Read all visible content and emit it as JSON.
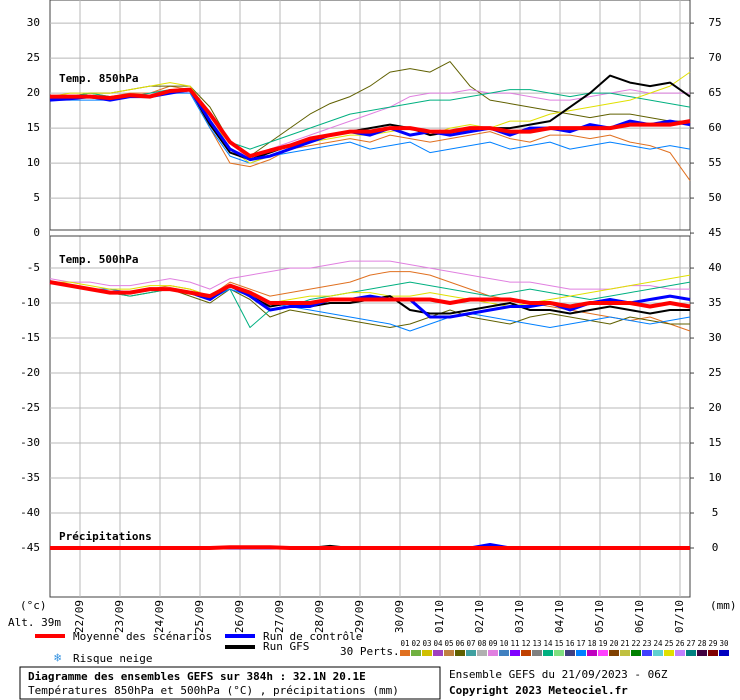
{
  "chart_data": {
    "type": "line",
    "title": "Diagramme des ensembles GEFS sur 384h : 32.1N 20.1E",
    "subtitle": "Températures 850hPa et 500hPa (°C) , précipitations (mm)",
    "run": "Ensemble GEFS du 21/09/2023 - 06Z",
    "copyright": "Copyright 2023 Meteociel.fr",
    "altitude": "Alt. 39m",
    "ylabel": "(°c)",
    "y2label": "(mm)",
    "snow_label": "Risque neige",
    "perts_label": "30 Perts.",
    "labels": {
      "t850": "Temp. 850hPa",
      "t500": "Temp. 500hPa",
      "precip": "Précipitations"
    },
    "precip_axis": "y2",
    "grid": true,
    "x": [
      0,
      12,
      24,
      36,
      48,
      60,
      72,
      84,
      96,
      108,
      120,
      132,
      144,
      156,
      168,
      180,
      192,
      204,
      216,
      228,
      240,
      252,
      264,
      276,
      288,
      300,
      312,
      324,
      336,
      348,
      360,
      372,
      384
    ],
    "xlim": [
      0,
      384
    ],
    "xticks": [
      {
        "value": 18,
        "label": "22/09"
      },
      {
        "value": 42,
        "label": "23/09"
      },
      {
        "value": 66,
        "label": "24/09"
      },
      {
        "value": 90,
        "label": "25/09"
      },
      {
        "value": 114,
        "label": "26/09"
      },
      {
        "value": 138,
        "label": "27/09"
      },
      {
        "value": 162,
        "label": "28/09"
      },
      {
        "value": 186,
        "label": "29/09"
      },
      {
        "value": 210,
        "label": "30/09"
      },
      {
        "value": 234,
        "label": "01/10"
      },
      {
        "value": 258,
        "label": "02/10"
      },
      {
        "value": 282,
        "label": "03/10"
      },
      {
        "value": 306,
        "label": "04/10"
      },
      {
        "value": 330,
        "label": "05/10"
      },
      {
        "value": 354,
        "label": "06/10"
      },
      {
        "value": 378,
        "label": "07/10"
      }
    ],
    "ylim": [
      -52,
      33.3
    ],
    "yticks": [
      30,
      25,
      20,
      15,
      10,
      5,
      0,
      -5,
      -10,
      -15,
      -20,
      -25,
      -30,
      -35,
      -40,
      -45
    ],
    "y2lim": [
      -7,
      78.3
    ],
    "y2ticks": [
      75,
      70,
      65,
      60,
      55,
      50,
      45,
      40,
      35,
      30,
      25,
      20,
      15,
      10,
      5,
      0
    ],
    "series": [
      {
        "name": "Run GFS",
        "color": "#000000",
        "t850": [
          19.5,
          19.5,
          19.5,
          19,
          19.5,
          19.5,
          20,
          20.5,
          15.5,
          11.5,
          10.5,
          11.5,
          12.5,
          13,
          14,
          14.5,
          15,
          15.5,
          15,
          14,
          14.5,
          14.5,
          15,
          15,
          15.5,
          16,
          18,
          20,
          22.5,
          21.5,
          21,
          21.5,
          19.5
        ],
        "t500": [
          -7,
          -7.5,
          -8,
          -8.5,
          -8.5,
          -8,
          -8,
          -8.5,
          -9.5,
          -7.5,
          -9,
          -10.5,
          -10,
          -10.5,
          -10,
          -10,
          -9.5,
          -9,
          -11,
          -11.5,
          -11.5,
          -11,
          -10.5,
          -10,
          -11,
          -11,
          -11.5,
          -11,
          -10.5,
          -11,
          -11.5,
          -11,
          -11
        ],
        "precip": [
          0,
          0,
          0,
          0,
          0,
          0,
          0,
          0,
          0,
          0,
          0,
          0,
          0,
          0,
          0.3,
          0,
          0,
          0,
          0,
          0,
          0,
          0,
          0,
          0,
          0,
          0,
          0,
          0,
          0,
          0,
          0,
          0,
          0
        ]
      },
      {
        "name": "Run de contrôle",
        "color": "#0000ff",
        "t850": [
          19,
          19.2,
          19.5,
          19,
          19.5,
          19.5,
          20,
          20.5,
          16,
          12,
          10.5,
          11,
          12,
          13,
          14,
          14.5,
          14,
          15,
          14,
          14.5,
          14,
          14.5,
          15,
          14,
          15,
          15,
          14.5,
          15.5,
          15,
          16,
          15.5,
          16,
          15.5
        ],
        "t500": [
          -7,
          -7.5,
          -8,
          -8.5,
          -8.5,
          -8,
          -8,
          -8.5,
          -9.5,
          -7.5,
          -9,
          -11,
          -10.5,
          -10.5,
          -9.5,
          -9.5,
          -9,
          -9.5,
          -9.5,
          -12,
          -12,
          -11.5,
          -11,
          -10.5,
          -10.5,
          -10,
          -11,
          -10,
          -9.5,
          -10,
          -9.5,
          -9,
          -9.5
        ],
        "precip": [
          0,
          0,
          0,
          0,
          0,
          0,
          0,
          0,
          0,
          0,
          0,
          0,
          0,
          0,
          0,
          0,
          0,
          0,
          0,
          0,
          0,
          0,
          0.5,
          0,
          0,
          0,
          0,
          0,
          0,
          0,
          0,
          0,
          0
        ]
      },
      {
        "name": "Moyenne des scénarios",
        "color": "#ff0000",
        "t850": [
          19.5,
          19.5,
          19.5,
          19.3,
          19.7,
          19.5,
          20.3,
          20.5,
          17,
          13,
          11,
          11.8,
          12.5,
          13.5,
          14,
          14.5,
          14.5,
          15,
          15,
          14.5,
          14.5,
          15,
          15,
          14.5,
          14.5,
          15,
          15,
          15,
          15,
          15.5,
          15.5,
          15.5,
          16
        ],
        "t500": [
          -7,
          -7.5,
          -8,
          -8.5,
          -8.5,
          -8,
          -8,
          -8.5,
          -9,
          -7.5,
          -8.5,
          -10,
          -10,
          -10,
          -9.5,
          -9.5,
          -9.5,
          -9.5,
          -9.5,
          -9.5,
          -10,
          -9.5,
          -9.5,
          -9.5,
          -10,
          -10,
          -10.5,
          -10,
          -10,
          -10,
          -10.5,
          -10,
          -10.5
        ],
        "precip": [
          0,
          0,
          0,
          0,
          0,
          0,
          0,
          0,
          0,
          0.1,
          0.1,
          0.1,
          0,
          0,
          0,
          0,
          0,
          0,
          0,
          0,
          0,
          0,
          0,
          0,
          0,
          0,
          0,
          0,
          0,
          0,
          0,
          0,
          0
        ]
      }
    ],
    "perturbations": [
      {
        "label": "01",
        "color": "#e07020",
        "t850": [
          19.5,
          19.5,
          20,
          19.5,
          20,
          20,
          21,
          20.5,
          15,
          10,
          9.5,
          10.5,
          12,
          12.5,
          13,
          13.5,
          13,
          14,
          13.5,
          13,
          13.5,
          14,
          14.5,
          13.5,
          13,
          14,
          14,
          13.5,
          14,
          13,
          12.5,
          11.5,
          7.5
        ],
        "t500": [
          -7,
          -7.5,
          -8,
          -8,
          -8.5,
          -8,
          -7.5,
          -8,
          -9,
          -7,
          -8,
          -9,
          -8.5,
          -8,
          -7.5,
          -7,
          -6,
          -5.5,
          -5.5,
          -6,
          -7,
          -8,
          -9,
          -9.5,
          -10,
          -10.5,
          -11,
          -11.5,
          -12,
          -12.5,
          -12,
          -13,
          -14
        ]
      },
      {
        "label": "02",
        "color": "#70b040"
      },
      {
        "label": "03",
        "color": "#d0c000"
      },
      {
        "label": "04",
        "color": "#a040c0"
      },
      {
        "label": "05",
        "color": "#c08040"
      },
      {
        "label": "06",
        "color": "#606000",
        "t850": [
          19.5,
          19.5,
          20,
          20,
          20.5,
          21,
          21,
          21,
          18,
          13,
          11,
          13,
          15,
          17,
          18.5,
          19.5,
          21,
          23,
          23.5,
          23,
          24.5,
          21,
          19,
          18.5,
          18,
          17.5,
          17,
          16.5,
          17,
          17,
          16.5,
          16,
          16
        ],
        "t500": [
          -7,
          -7.5,
          -8,
          -8.5,
          -9,
          -8.5,
          -8,
          -9,
          -10,
          -8,
          -9.5,
          -12,
          -11,
          -11.5,
          -12,
          -12.5,
          -13,
          -13.5,
          -13,
          -12,
          -11,
          -12,
          -12.5,
          -13,
          -12,
          -11.5,
          -12,
          -12.5,
          -13,
          -12,
          -12.5,
          -13,
          -13
        ]
      },
      {
        "label": "07",
        "color": "#40a0a0"
      },
      {
        "label": "08",
        "color": "#b0b0b0"
      },
      {
        "label": "09",
        "color": "#e080e0",
        "t850": [
          19,
          19,
          19.5,
          19.5,
          19.5,
          20,
          20.5,
          20,
          16,
          12,
          11,
          12,
          13,
          14,
          15,
          16,
          17,
          18,
          19.5,
          20,
          20,
          20.5,
          20,
          20,
          19.5,
          19,
          19,
          19.5,
          20,
          20.5,
          20,
          20,
          20
        ],
        "t500": [
          -6.5,
          -7,
          -7,
          -7.5,
          -7.5,
          -7,
          -6.5,
          -7,
          -8,
          -6.5,
          -6,
          -5.5,
          -5,
          -5,
          -4.5,
          -4,
          -4,
          -4,
          -4.5,
          -5,
          -5.5,
          -6,
          -6.5,
          -7,
          -7,
          -7.5,
          -8,
          -8,
          -8,
          -7.5,
          -7.5,
          -8,
          -8
        ]
      },
      {
        "label": "10",
        "color": "#4080c0"
      },
      {
        "label": "11",
        "color": "#8000ff"
      },
      {
        "label": "12",
        "color": "#c04000"
      },
      {
        "label": "13",
        "color": "#808080"
      },
      {
        "label": "14",
        "color": "#00b080",
        "t850": [
          19.5,
          19.5,
          20,
          19.5,
          19.5,
          20,
          20.5,
          20.5,
          17,
          13,
          12,
          13,
          14,
          15,
          16,
          17,
          17.5,
          18,
          18.5,
          19,
          19,
          19.5,
          20,
          20.5,
          20.5,
          20,
          19.5,
          20,
          20,
          19.5,
          19,
          18.5,
          18
        ],
        "t500": [
          -7,
          -7.5,
          -8,
          -8.5,
          -9,
          -8.5,
          -8,
          -8.5,
          -9,
          -8,
          -13.5,
          -11,
          -10.5,
          -9.5,
          -9,
          -8.5,
          -8,
          -7.5,
          -7,
          -7.5,
          -8,
          -8.5,
          -9,
          -8.5,
          -8,
          -8.5,
          -9,
          -9.5,
          -9,
          -8.5,
          -8,
          -7.5,
          -7
        ]
      },
      {
        "label": "15",
        "color": "#80e080"
      },
      {
        "label": "16",
        "color": "#404080"
      },
      {
        "label": "17",
        "color": "#0080ff",
        "t850": [
          19,
          19,
          19,
          19,
          19.5,
          19.5,
          20,
          20,
          15,
          11,
          10,
          11,
          11.5,
          12,
          12.5,
          13,
          12,
          12.5,
          13,
          11.5,
          12,
          12.5,
          13,
          12,
          12.5,
          13,
          12,
          12.5,
          13,
          12.5,
          12,
          12.5,
          12
        ],
        "t500": [
          -7,
          -7.5,
          -8,
          -8,
          -8.5,
          -8,
          -8,
          -8.5,
          -9.5,
          -8,
          -9,
          -10,
          -10.5,
          -11,
          -11.5,
          -12,
          -12.5,
          -13,
          -14,
          -13,
          -12,
          -11.5,
          -12,
          -12.5,
          -13,
          -13.5,
          -13,
          -12.5,
          -12,
          -12.5,
          -13,
          -12.5,
          -12
        ]
      },
      {
        "label": "18",
        "color": "#c000c0"
      },
      {
        "label": "19",
        "color": "#ff40ff"
      },
      {
        "label": "20",
        "color": "#804000"
      },
      {
        "label": "21",
        "color": "#c0c040"
      },
      {
        "label": "22",
        "color": "#008000"
      },
      {
        "label": "23",
        "color": "#4040ff"
      },
      {
        "label": "24",
        "color": "#60d0d0"
      },
      {
        "label": "25",
        "color": "#e0e000",
        "t850": [
          19.5,
          20,
          20,
          20,
          20.5,
          21,
          21.5,
          21,
          17,
          12,
          10,
          11,
          12,
          13,
          13.5,
          14,
          14,
          14.5,
          15,
          14,
          15,
          15.5,
          15,
          16,
          16,
          17,
          17.5,
          18,
          18.5,
          19,
          20,
          21,
          23
        ],
        "t500": [
          -7,
          -7,
          -7.5,
          -8,
          -8,
          -7.5,
          -7.5,
          -8,
          -9,
          -7.5,
          -8.5,
          -10,
          -9.5,
          -9,
          -9,
          -8.5,
          -8.5,
          -9,
          -9,
          -8.5,
          -9,
          -9.5,
          -10,
          -10.5,
          -10,
          -9.5,
          -9,
          -8.5,
          -8,
          -7.5,
          -7,
          -6.5,
          -6
        ]
      },
      {
        "label": "26",
        "color": "#c080ff"
      },
      {
        "label": "27",
        "color": "#008080"
      },
      {
        "label": "28",
        "color": "#400040"
      },
      {
        "label": "29",
        "color": "#800000"
      },
      {
        "label": "30",
        "color": "#0000c0"
      }
    ]
  }
}
